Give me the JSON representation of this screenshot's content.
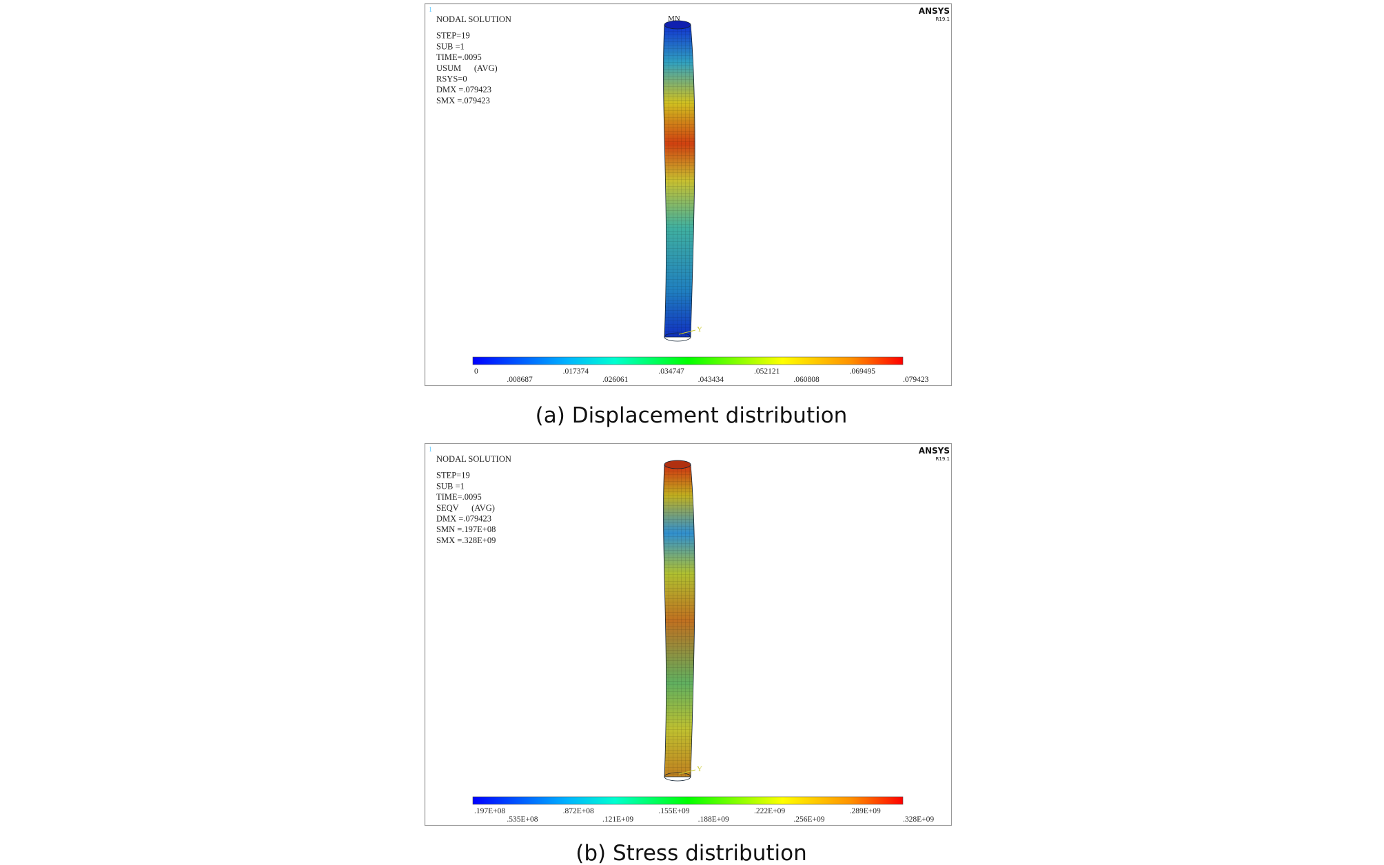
{
  "panels": [
    {
      "window_number": "1",
      "logo": "ANSYS",
      "version": "R19.1",
      "info_lines": [
        "NODAL SOLUTION",
        "STEP=19",
        "SUB =1",
        "TIME=.0095",
        "USUM      (AVG)",
        "RSYS=0",
        "DMX =.079423",
        "SMX =.079423"
      ],
      "marker": "MN",
      "axis_label": "Y",
      "scale_upper": [
        "0",
        ".017374",
        ".034747",
        ".052121",
        ".069495"
      ],
      "scale_lower": [
        ".008687",
        ".026061",
        ".043434",
        ".060808",
        ".079423"
      ],
      "caption": "(a) Displacement distribution"
    },
    {
      "window_number": "1",
      "logo": "ANSYS",
      "version": "R19.1",
      "info_lines": [
        "NODAL SOLUTION",
        "STEP=19",
        "SUB =1",
        "TIME=.0095",
        "SEQV      (AVG)",
        "DMX =.079423",
        "SMN =.197E+08",
        "SMX =.328E+09"
      ],
      "axis_label": "Y",
      "scale_upper": [
        ".197E+08",
        ".872E+08",
        ".155E+09",
        ".222E+09",
        ".289E+09"
      ],
      "scale_lower": [
        ".535E+08",
        ".121E+09",
        ".188E+09",
        ".256E+09",
        ".328E+09"
      ],
      "caption": "(b) Stress distribution"
    }
  ]
}
